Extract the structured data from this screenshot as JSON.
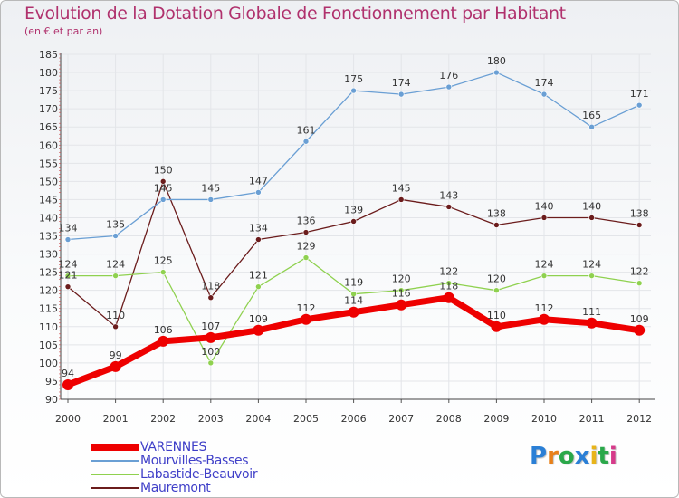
{
  "header": {
    "title": "Evolution de la Dotation Globale de Fonctionnement par Habitant",
    "subtitle": "(en € et par an)"
  },
  "logo": {
    "text": "Proxiti",
    "colors": [
      "#2a7fd6",
      "#e8801a",
      "#2aa84a",
      "#2a7fd6",
      "#e8b41a",
      "#2aa84a",
      "#d63a8a"
    ]
  },
  "chart_data": {
    "type": "line",
    "title": "Evolution de la Dotation Globale de Fonctionnement par Habitant",
    "subtitle": "(en € et par an)",
    "xlabel": "",
    "ylabel": "",
    "x": [
      "2000",
      "2001",
      "2002",
      "2003",
      "2004",
      "2005",
      "2006",
      "2007",
      "2008",
      "2009",
      "2010",
      "2011",
      "2012"
    ],
    "ylim": [
      90,
      185
    ],
    "yticks": [
      90,
      95,
      100,
      105,
      110,
      115,
      120,
      125,
      130,
      135,
      140,
      145,
      150,
      155,
      160,
      165,
      170,
      175,
      180,
      185
    ],
    "grid": true,
    "legend_position": "bottom-left",
    "series": [
      {
        "name": "VARENNES",
        "color": "#ee0000",
        "values": [
          94,
          99,
          106,
          107,
          109,
          112,
          114,
          116,
          118,
          110,
          112,
          111,
          109
        ]
      },
      {
        "name": "Mourvilles-Basses",
        "color": "#6a9fd4",
        "values": [
          134,
          135,
          145,
          145,
          147,
          161,
          175,
          174,
          176,
          180,
          174,
          165,
          171
        ]
      },
      {
        "name": "Labastide-Beauvoir",
        "color": "#8fd14f",
        "values": [
          124,
          124,
          125,
          100,
          121,
          129,
          119,
          120,
          122,
          120,
          124,
          124,
          122
        ]
      },
      {
        "name": "Mauremont",
        "color": "#6b1c1c",
        "values": [
          121,
          110,
          150,
          118,
          134,
          136,
          139,
          145,
          143,
          138,
          140,
          140,
          138
        ]
      }
    ]
  }
}
